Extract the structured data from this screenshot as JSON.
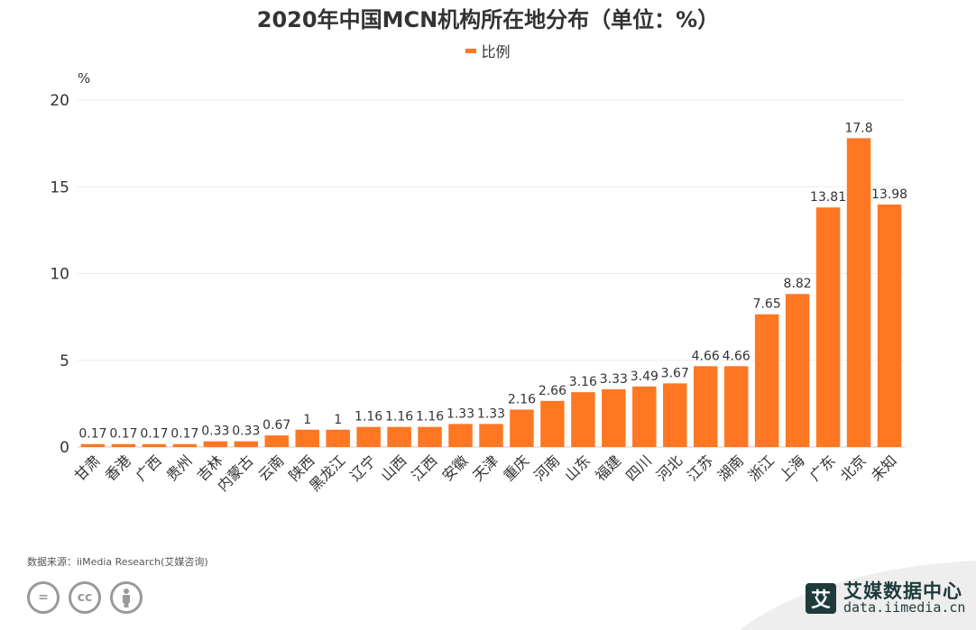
{
  "header": {
    "title": "2020年中国MCN机构所在地分布（单位：%）"
  },
  "footer": {
    "source": "数据来源：iiMedia Research(艾媒咨询)",
    "brand_name": "艾媒数据中心",
    "brand_url": "data.iimedia.cn",
    "brand_logo_char": "艾"
  },
  "chart_data": {
    "type": "bar",
    "title": "2020年中国MCN机构所在地分布（单位：%）",
    "ylabel": "%",
    "xlabel": "",
    "ylim": [
      0,
      20
    ],
    "yticks": [
      0,
      5,
      10,
      15,
      20
    ],
    "grid": true,
    "legend_position": "top-center",
    "color": "#ff7722",
    "categories": [
      "甘肃",
      "香港",
      "广西",
      "贵州",
      "吉林",
      "内蒙古",
      "云南",
      "陕西",
      "黑龙江",
      "辽宁",
      "山西",
      "江西",
      "安徽",
      "天津",
      "重庆",
      "河南",
      "山东",
      "福建",
      "四川",
      "河北",
      "江苏",
      "湖南",
      "浙江",
      "上海",
      "广东",
      "北京",
      "未知"
    ],
    "series": [
      {
        "name": "比例",
        "values": [
          0.17,
          0.17,
          0.17,
          0.17,
          0.33,
          0.33,
          0.67,
          1,
          1,
          1.16,
          1.16,
          1.16,
          1.33,
          1.33,
          2.16,
          2.66,
          3.16,
          3.33,
          3.49,
          3.67,
          4.66,
          4.66,
          7.65,
          8.82,
          13.81,
          17.8,
          13.98
        ]
      }
    ]
  }
}
